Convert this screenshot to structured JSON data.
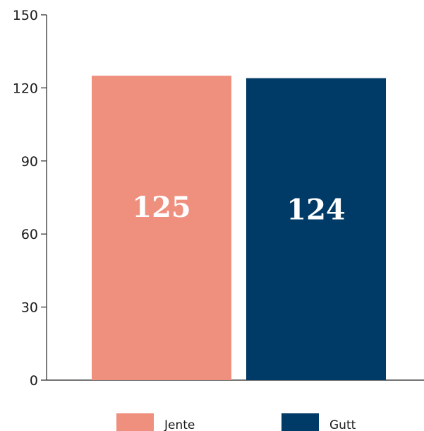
{
  "chart_data": {
    "type": "bar",
    "categories": [
      "Jente",
      "Gutt"
    ],
    "values": [
      125,
      124
    ],
    "data_labels": [
      "125",
      "124"
    ],
    "colors": [
      "#ef8f7e",
      "#003a66"
    ],
    "ylim": [
      0,
      150
    ],
    "yticks": [
      0,
      30,
      60,
      90,
      120,
      150
    ],
    "ytick_labels": [
      "0",
      "30",
      "60",
      "90",
      "120",
      "150"
    ],
    "legend": {
      "position": "bottom",
      "entries": [
        {
          "label": "Jente",
          "color": "#ef8f7e"
        },
        {
          "label": "Gutt",
          "color": "#003a66"
        }
      ]
    },
    "title": "",
    "xlabel": "",
    "ylabel": "",
    "grid": false
  }
}
